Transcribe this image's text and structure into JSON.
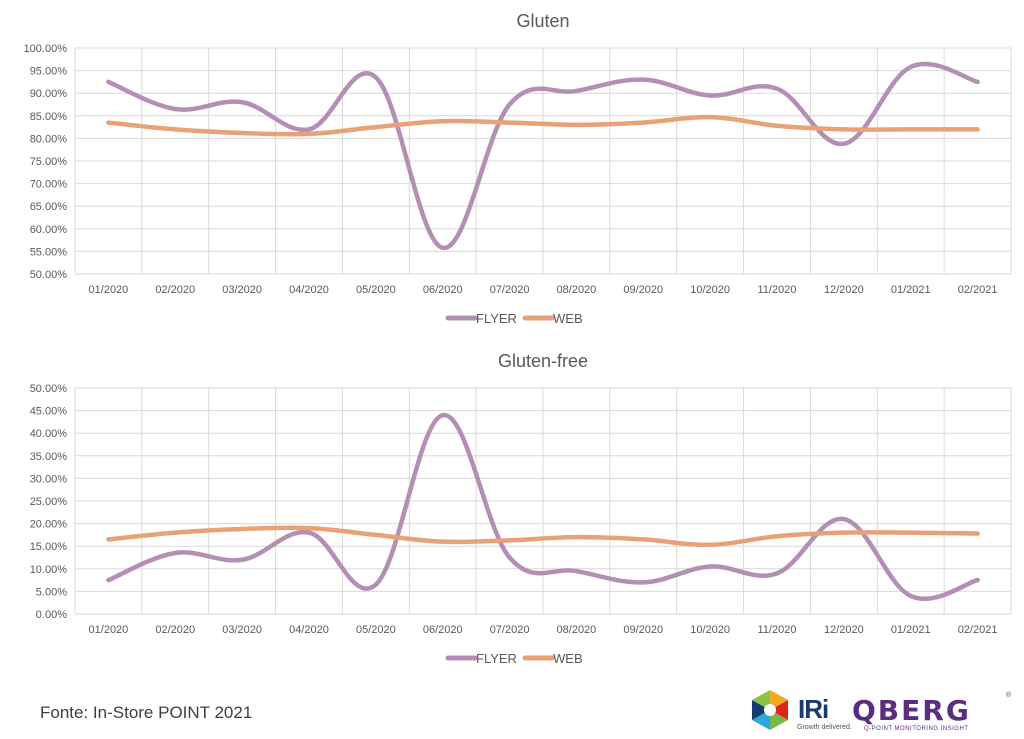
{
  "source_note": "Fonte: In-Store POINT 2021",
  "logos": {
    "iri_text": "IRi",
    "iri_tagline": "Growth delivered.",
    "qberg_text": "QBERG",
    "qberg_tagline": "Q-POINT MONITORING INSIGHT"
  },
  "colors": {
    "flyer": "#b48fb5",
    "web": "#e9a177",
    "grid": "#d9d9d9",
    "text": "#595959"
  },
  "chart_data": [
    {
      "type": "line",
      "title": "Gluten",
      "categories": [
        "01/2020",
        "02/2020",
        "03/2020",
        "04/2020",
        "05/2020",
        "06/2020",
        "07/2020",
        "08/2020",
        "09/2020",
        "10/2020",
        "11/2020",
        "12/2020",
        "01/2021",
        "02/2021"
      ],
      "series": [
        {
          "name": "FLYER",
          "values": [
            92.5,
            86.5,
            88.0,
            82.0,
            93.5,
            55.8,
            87.5,
            90.5,
            93.0,
            89.5,
            91.0,
            78.8,
            95.8,
            92.5
          ]
        },
        {
          "name": "WEB",
          "values": [
            83.5,
            82.0,
            81.2,
            81.0,
            82.5,
            83.8,
            83.5,
            83.0,
            83.5,
            84.7,
            82.8,
            82.0,
            82.0,
            82.0
          ]
        }
      ],
      "ylim": [
        50,
        100
      ],
      "yticks": [
        "50.00%",
        "55.00%",
        "60.00%",
        "65.00%",
        "70.00%",
        "75.00%",
        "80.00%",
        "85.00%",
        "90.00%",
        "95.00%",
        "100.00%"
      ],
      "grid": true,
      "legend": "bottom"
    },
    {
      "type": "line",
      "title": "Gluten-free",
      "categories": [
        "01/2020",
        "02/2020",
        "03/2020",
        "04/2020",
        "05/2020",
        "06/2020",
        "07/2020",
        "08/2020",
        "09/2020",
        "10/2020",
        "11/2020",
        "12/2020",
        "01/2021",
        "02/2021"
      ],
      "series": [
        {
          "name": "FLYER",
          "values": [
            7.5,
            13.5,
            12.0,
            18.0,
            6.5,
            44.0,
            12.5,
            9.5,
            7.0,
            10.5,
            9.0,
            21.0,
            4.0,
            7.5
          ]
        },
        {
          "name": "WEB",
          "values": [
            16.5,
            18.0,
            18.8,
            19.0,
            17.5,
            16.0,
            16.3,
            17.0,
            16.5,
            15.3,
            17.2,
            18.0,
            18.0,
            17.8
          ]
        }
      ],
      "ylim": [
        0,
        50
      ],
      "yticks": [
        "0.00%",
        "5.00%",
        "10.00%",
        "15.00%",
        "20.00%",
        "25.00%",
        "30.00%",
        "35.00%",
        "40.00%",
        "45.00%",
        "50.00%"
      ],
      "grid": true,
      "legend": "bottom"
    }
  ]
}
